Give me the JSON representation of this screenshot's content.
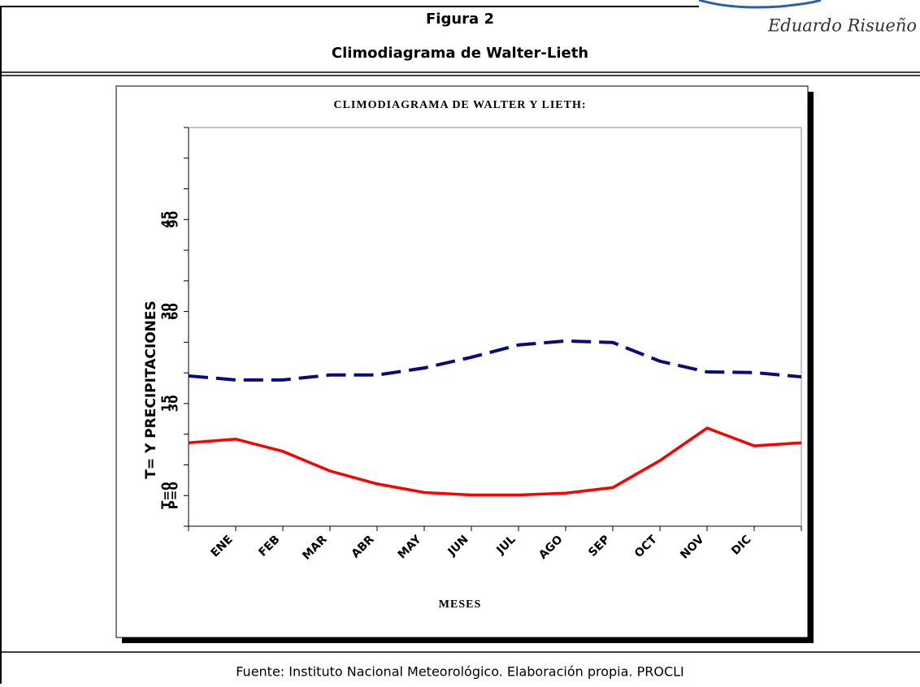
{
  "header": {
    "figure": "Figura 2",
    "title": "Climodiagrama de Walter-Lieth",
    "author": "Eduardo Risueño"
  },
  "chart_data": {
    "type": "line",
    "title": "CLIMODIAGRAMA DE WALTER Y LIETH:",
    "xlabel": "MESES",
    "ylabel": "T= Y PRECIPITACIONES",
    "categories": [
      null,
      "ENE",
      "FEB",
      "MAR",
      "ABR",
      "MAY",
      "JUN",
      "JUL",
      "AGO",
      "SEP",
      "OCT",
      "NOV",
      "DIC",
      null
    ],
    "series": [
      {
        "color": "#ff0000",
        "style": "solid",
        "values": [
          8.6,
          9.2,
          7.2,
          4.0,
          1.9,
          0.5,
          0.1,
          0.1,
          0.4,
          1.3,
          5.7,
          11.0,
          8.1,
          8.6
        ]
      },
      {
        "color": "#0a0a7a",
        "style": "dashed",
        "axis": "y2",
        "values": [
          39.0,
          37.7,
          37.7,
          39.3,
          39.3,
          41.6,
          45.1,
          49.1,
          50.4,
          49.9,
          43.8,
          40.3,
          40.1,
          38.7
        ]
      }
    ],
    "ylim": [
      -5,
      60
    ],
    "yticks": [
      {
        "value": 0,
        "label": "T=0"
      },
      15,
      30,
      45
    ],
    "yticks_minor": [
      -5,
      5,
      10,
      20,
      25,
      35,
      40,
      50,
      55,
      60
    ],
    "y2lim": [
      -10,
      120
    ],
    "y2ticks": [
      {
        "value": 0,
        "label": "P=0"
      },
      30,
      60,
      90
    ]
  },
  "footer": {
    "source": "Fuente: Instituto Nacional Meteorológico. Elaboración propia. PROCLI"
  }
}
